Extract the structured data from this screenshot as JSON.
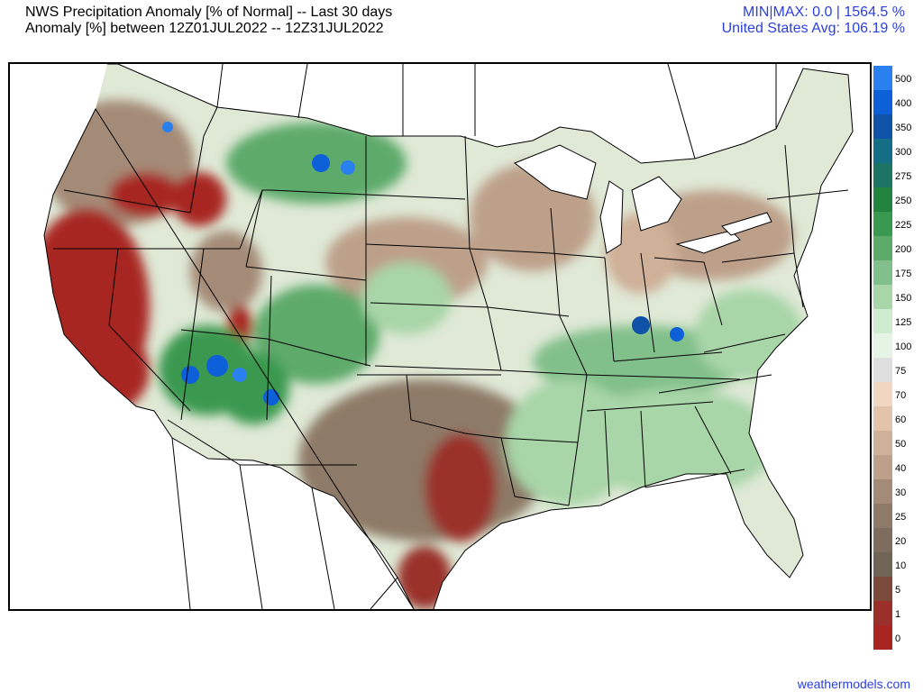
{
  "header": {
    "title_line1": "NWS Precipitation Anomaly [% of Normal] -- Last 30 days",
    "title_line2": "Anomaly [%] between 12Z01JUL2022 -- 12Z31JUL2022",
    "minmax": "MIN|MAX: 0.0 | 1564.5 %",
    "us_avg": "United States Avg: 106.19 %",
    "stat_color": "#2a3fe0"
  },
  "map": {
    "region": "Contiguous United States",
    "field": "precipitation percent of normal",
    "regional_summary": [
      {
        "region": "California",
        "category": "0-5"
      },
      {
        "region": "Oregon / Idaho",
        "category": "0-40"
      },
      {
        "region": "Texas",
        "category": "0-50"
      },
      {
        "region": "Arizona / Utah / Colorado",
        "category": "150-400"
      },
      {
        "region": "Kentucky / Ohio Valley",
        "category": "175-400"
      },
      {
        "region": "Southeast",
        "category": "100-175"
      },
      {
        "region": "Montana / Dakotas",
        "category": "125-275"
      }
    ]
  },
  "colorbar": {
    "labels": [
      "500",
      "400",
      "350",
      "300",
      "275",
      "250",
      "225",
      "200",
      "175",
      "150",
      "125",
      "100",
      "75",
      "70",
      "60",
      "50",
      "40",
      "30",
      "25",
      "20",
      "10",
      "5",
      "1",
      "0"
    ],
    "colors": [
      "#2b80f0",
      "#0d60d8",
      "#0f52a8",
      "#146f86",
      "#1d7465",
      "#23843f",
      "#3a9950",
      "#5daa6a",
      "#82c08b",
      "#a8d6a8",
      "#d0ecd0",
      "#e6f4e6",
      "#dedede",
      "#f1d7c2",
      "#e3c4ab",
      "#cfb098",
      "#bda08a",
      "#a48b77",
      "#8e7a68",
      "#7e6d5f",
      "#6f6455",
      "#7c4a3a",
      "#9a3029",
      "#a82522"
    ]
  },
  "footer": {
    "credit": "weathermodels.com",
    "credit_color": "#2a3fe0"
  }
}
